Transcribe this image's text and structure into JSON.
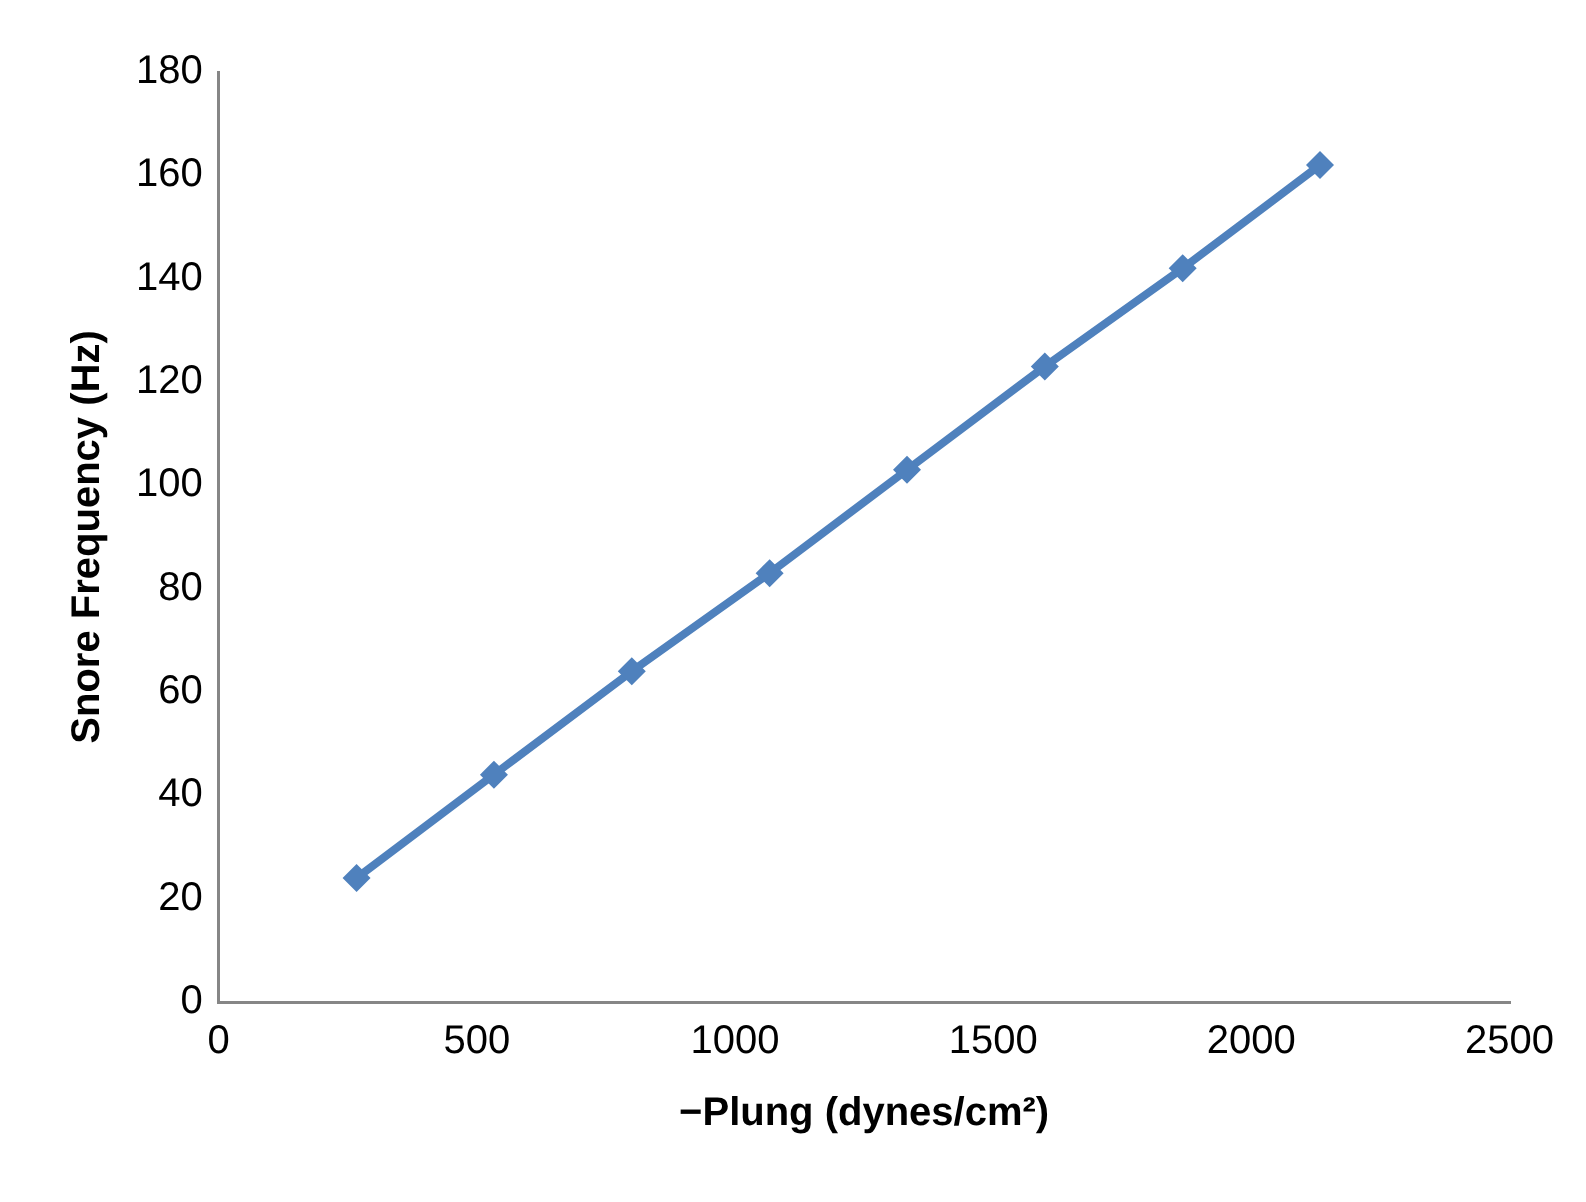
{
  "chart_data": {
    "type": "line",
    "xlabel": "−Plung (dynes/cm²)",
    "ylabel": "Snore Frequency (Hz)",
    "x": [
      267,
      533,
      800,
      1067,
      1333,
      1600,
      1867,
      2133
    ],
    "series": [
      {
        "color": "#4f81bd",
        "values": [
          24,
          44,
          64,
          83,
          103,
          123,
          142,
          162
        ]
      }
    ],
    "xlim": [
      0,
      2500
    ],
    "xticks": [
      0,
      500,
      1000,
      1500,
      2000,
      2500
    ],
    "ylim": [
      0,
      180
    ],
    "yticks": [
      0,
      20,
      40,
      60,
      80,
      100,
      120,
      140,
      160,
      180
    ],
    "grid": false,
    "legend": false,
    "marker": "diamond",
    "line_style": "solid"
  }
}
